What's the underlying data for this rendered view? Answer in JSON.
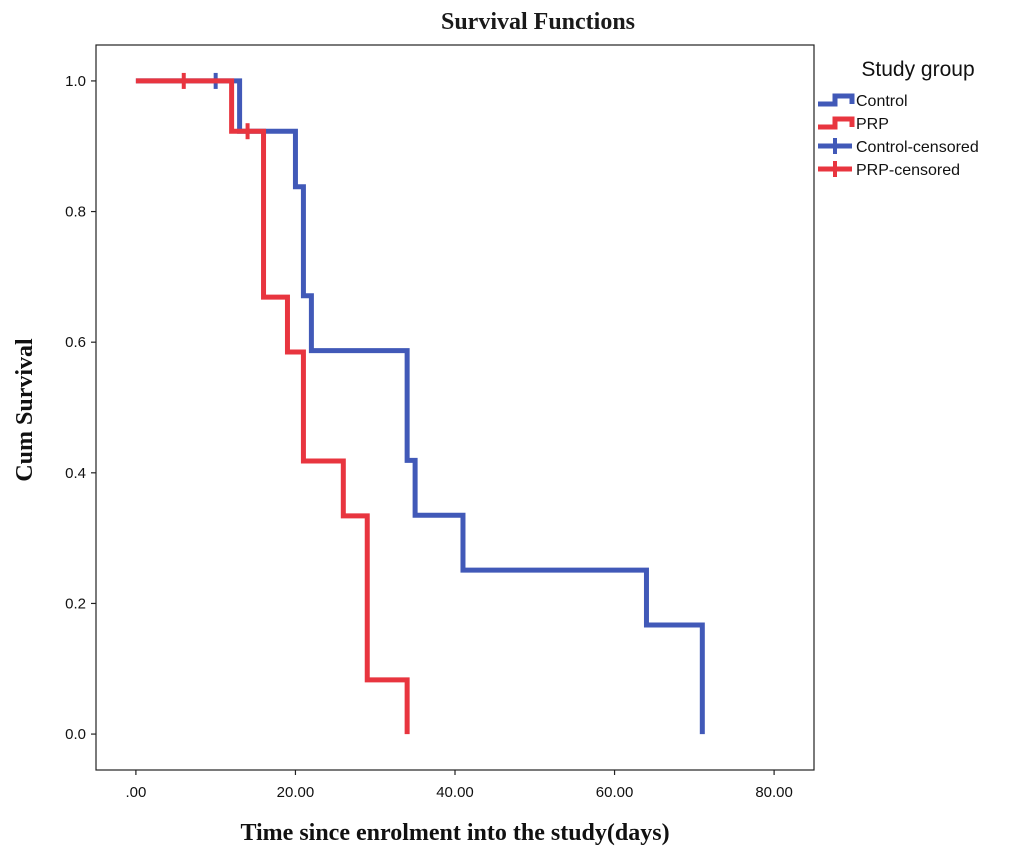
{
  "chart_data": {
    "type": "line",
    "subtype": "kaplan-meier-step",
    "title": "Survival Functions",
    "xlabel": "Time since enrolment into the study(days)",
    "ylabel": "Cum Survival",
    "xlim": [
      -5,
      85
    ],
    "ylim": [
      -0.055,
      1.055
    ],
    "x_ticks": [
      0,
      20,
      40,
      60,
      80
    ],
    "x_tick_labels": [
      ".00",
      "20.00",
      "40.00",
      "60.00",
      "80.00"
    ],
    "y_ticks": [
      0,
      0.2,
      0.4,
      0.6,
      0.8,
      1.0
    ],
    "y_tick_labels": [
      "0.0",
      "0.2",
      "0.4",
      "0.6",
      "0.8",
      "1.0"
    ],
    "grid": false,
    "legend": {
      "title": "Study group",
      "placement": "right-top",
      "entries": [
        {
          "label": "Control",
          "color": "#4159b8",
          "kind": "line"
        },
        {
          "label": "PRP",
          "color": "#e8353f",
          "kind": "line"
        },
        {
          "label": "Control-censored",
          "color": "#4159b8",
          "kind": "censor"
        },
        {
          "label": "PRP-censored",
          "color": "#e8353f",
          "kind": "censor"
        }
      ]
    },
    "series": [
      {
        "name": "Control",
        "color": "#4159b8",
        "steps": [
          [
            0,
            1.0
          ],
          [
            13,
            0.923
          ],
          [
            20,
            0.838
          ],
          [
            21,
            0.671
          ],
          [
            22,
            0.587
          ],
          [
            34,
            0.419
          ],
          [
            35,
            0.335
          ],
          [
            41,
            0.251
          ],
          [
            64,
            0.167
          ],
          [
            71,
            0.0
          ]
        ],
        "censored": [
          [
            10,
            1.0
          ]
        ]
      },
      {
        "name": "PRP",
        "color": "#e8353f",
        "steps": [
          [
            0,
            1.0
          ],
          [
            12,
            0.923
          ],
          [
            16,
            0.669
          ],
          [
            19,
            0.585
          ],
          [
            21,
            0.418
          ],
          [
            26,
            0.334
          ],
          [
            29,
            0.083
          ],
          [
            34,
            0.0
          ]
        ],
        "censored": [
          [
            6,
            1.0
          ],
          [
            14,
            0.923
          ]
        ]
      }
    ]
  }
}
